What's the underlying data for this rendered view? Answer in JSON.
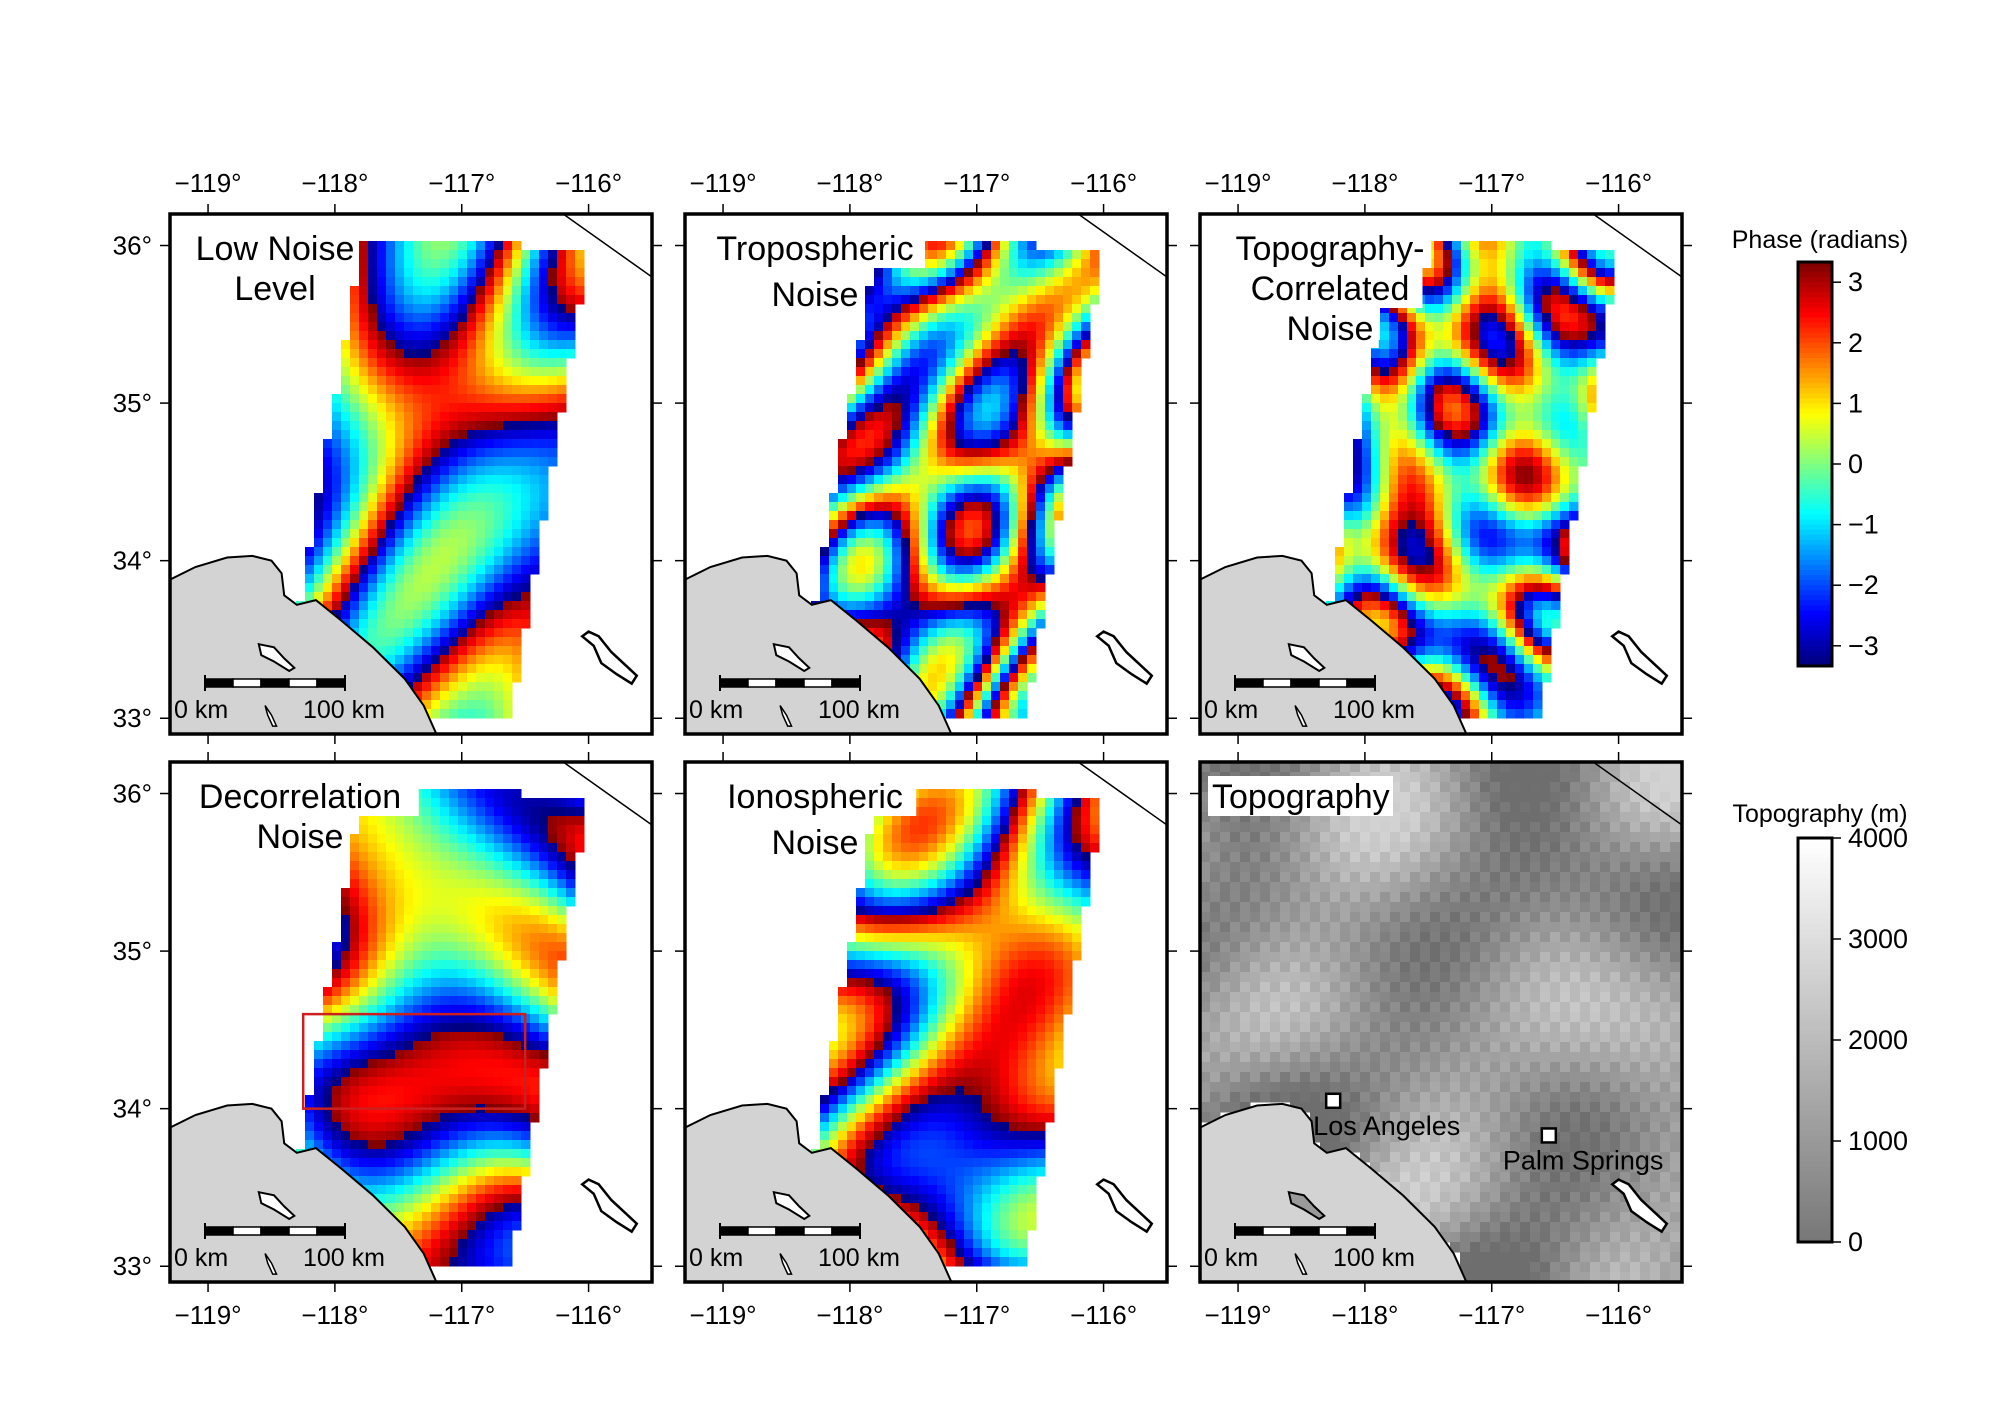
{
  "panels": [
    {
      "id": "low-noise",
      "title_lines": [
        "Low Noise",
        "Level"
      ],
      "kind": "phase",
      "seed": 11,
      "has_box": false
    },
    {
      "id": "tropospheric",
      "title_lines": [
        "Tropospheric",
        "Noise"
      ],
      "kind": "phase",
      "seed": 23,
      "has_box": false
    },
    {
      "id": "topo-correlated",
      "title_lines": [
        "Topography-",
        "Correlated",
        "Noise"
      ],
      "kind": "phase",
      "seed": 37,
      "has_box": false
    },
    {
      "id": "decorrelation",
      "title_lines": [
        "Decorrelation",
        "Noise"
      ],
      "kind": "phase",
      "seed": 51,
      "has_box": true
    },
    {
      "id": "ionospheric",
      "title_lines": [
        "Ionospheric",
        "Noise"
      ],
      "kind": "phase",
      "seed": 67,
      "has_box": false
    },
    {
      "id": "topography",
      "title_lines": [
        "Topography"
      ],
      "kind": "topo",
      "seed": 79,
      "has_box": false
    }
  ],
  "map_extent": {
    "lon": [
      -119.3,
      -115.5
    ],
    "lat": [
      32.9,
      36.2
    ]
  },
  "lon_ticks": [
    {
      "value": -119,
      "label": "−119°"
    },
    {
      "value": -118,
      "label": "−118°"
    },
    {
      "value": -117,
      "label": "−117°"
    },
    {
      "value": -116,
      "label": "−116°"
    }
  ],
  "lat_ticks": [
    {
      "value": 36,
      "label": "36°"
    },
    {
      "value": 35,
      "label": "35°"
    },
    {
      "value": 34,
      "label": "34°"
    },
    {
      "value": 33,
      "label": "33°"
    }
  ],
  "scale_bar": {
    "left_label": "0 km",
    "right_label": "100 km"
  },
  "decorrelation_box": {
    "lon": [
      -118.25,
      -116.5
    ],
    "lat": [
      34.0,
      34.6
    ],
    "color": "#cc1f1f"
  },
  "cities": [
    {
      "name": "Los Angeles",
      "lon": -118.25,
      "lat": 34.05
    },
    {
      "name": "Palm Springs",
      "lon": -116.55,
      "lat": 33.83
    }
  ],
  "colorbars": {
    "phase": {
      "title": "Phase (radians)",
      "ticks": [
        "3",
        "2",
        "1",
        "0",
        "−1",
        "−2",
        "−3"
      ],
      "range": [
        -3.14,
        3.14
      ]
    },
    "topo": {
      "title": "Topography (m)",
      "ticks": [
        "4000",
        "3000",
        "2000",
        "1000",
        "0"
      ],
      "range": [
        0,
        4000
      ]
    }
  },
  "colors": {
    "land": "#d3d3d3",
    "ocean": "#ffffff",
    "frame": "#000000"
  }
}
